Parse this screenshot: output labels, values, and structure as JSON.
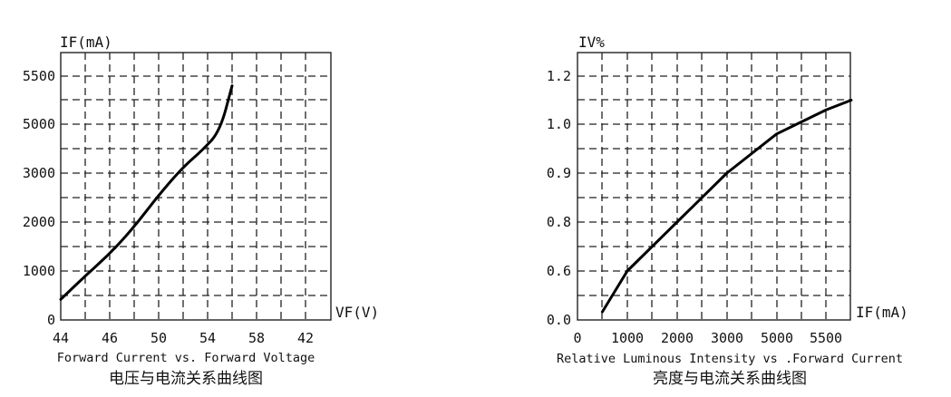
{
  "chart_data": [
    {
      "type": "line",
      "ylabel": "IF(mA)",
      "xlabel": "VF(V)",
      "x_ticks": [
        "44",
        "46",
        "50",
        "54",
        "58",
        "42"
      ],
      "y_ticks": [
        "0",
        "1000",
        "2000",
        "3000",
        "5000",
        "5500"
      ],
      "caption_en": "Forward Current vs. Forward Voltage",
      "caption_zh": "电压与电流关系曲线图",
      "grid": true,
      "series": [
        {
          "x": [
            44.0,
            46.0,
            48.0,
            50.0,
            52.0,
            54.0,
            55.5,
            57.0,
            58.0
          ],
          "y": [
            420,
            900,
            1350,
            1900,
            2550,
            3250,
            3900,
            4700,
            5400
          ]
        }
      ]
    },
    {
      "type": "line",
      "ylabel": "IV%",
      "xlabel": "IF(mA)",
      "x_ticks": [
        "0",
        "1000",
        "2000",
        "3000",
        "5000",
        "5500"
      ],
      "y_ticks": [
        "0.0",
        "0.6",
        "0.8",
        "0.9",
        "1.0",
        "1.2"
      ],
      "caption_en": "Relative Luminous Intensity vs .Forward Current",
      "caption_zh": "亮度与电流关系曲线图",
      "grid": true,
      "series": [
        {
          "x": [
            500,
            1000,
            2000,
            3000,
            4000,
            5000,
            5500
          ],
          "y": [
            0.1,
            0.6,
            0.8,
            0.9,
            0.98,
            1.06,
            1.1
          ]
        }
      ]
    }
  ]
}
